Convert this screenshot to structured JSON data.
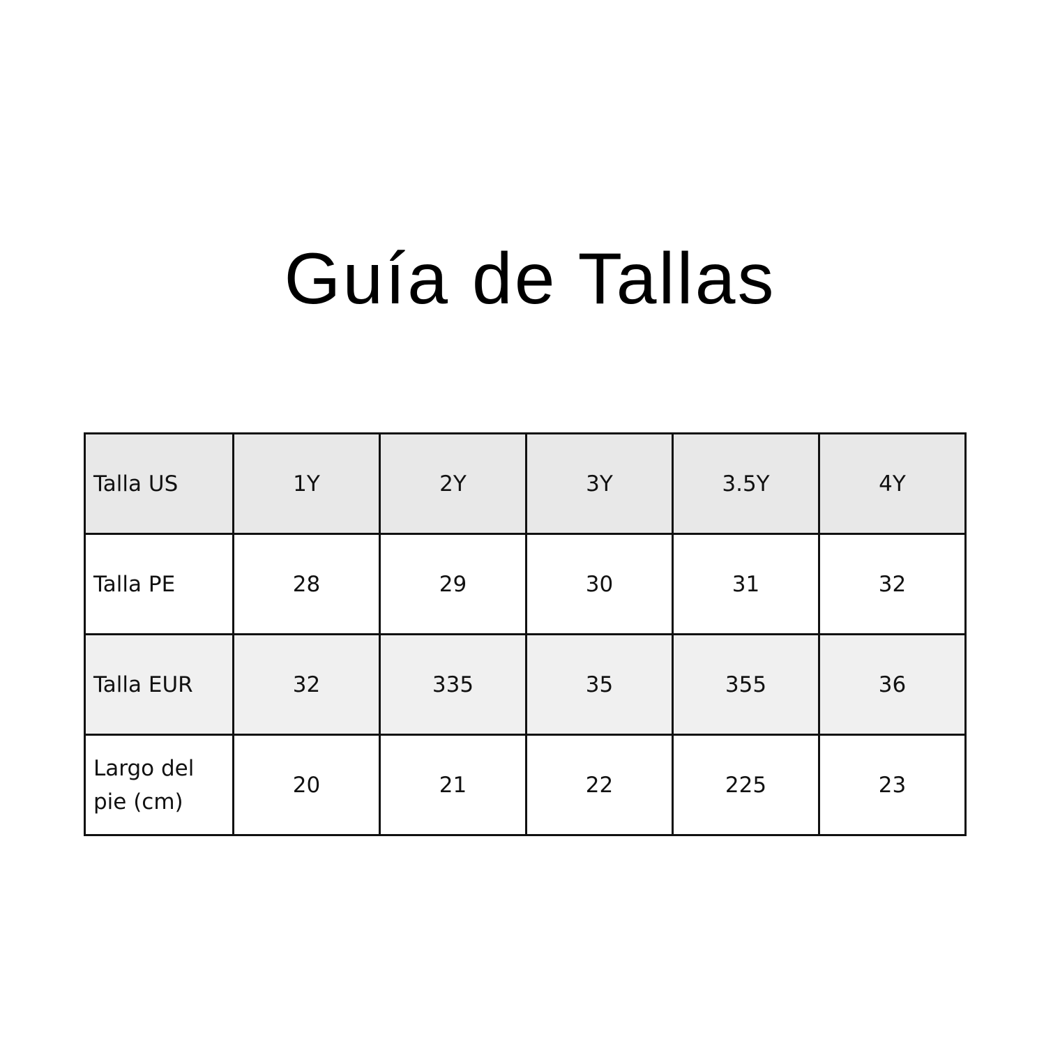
{
  "title": "Guía de Tallas",
  "colors": {
    "header_row_bg": "#e8e8e8",
    "alt_row_bg": "#f0f0f0",
    "border": "#111111"
  },
  "table": {
    "rows": [
      {
        "label": "Talla US",
        "values": [
          "1Y",
          "2Y",
          "3Y",
          "3.5Y",
          "4Y"
        ]
      },
      {
        "label": "Talla PE",
        "values": [
          "28",
          "29",
          "30",
          "31",
          "32"
        ]
      },
      {
        "label": "Talla EUR",
        "values": [
          "32",
          "335",
          "35",
          "355",
          "36"
        ]
      },
      {
        "label": "Largo del pie (cm)",
        "values": [
          "20",
          "21",
          "22",
          "225",
          "23"
        ]
      }
    ]
  }
}
